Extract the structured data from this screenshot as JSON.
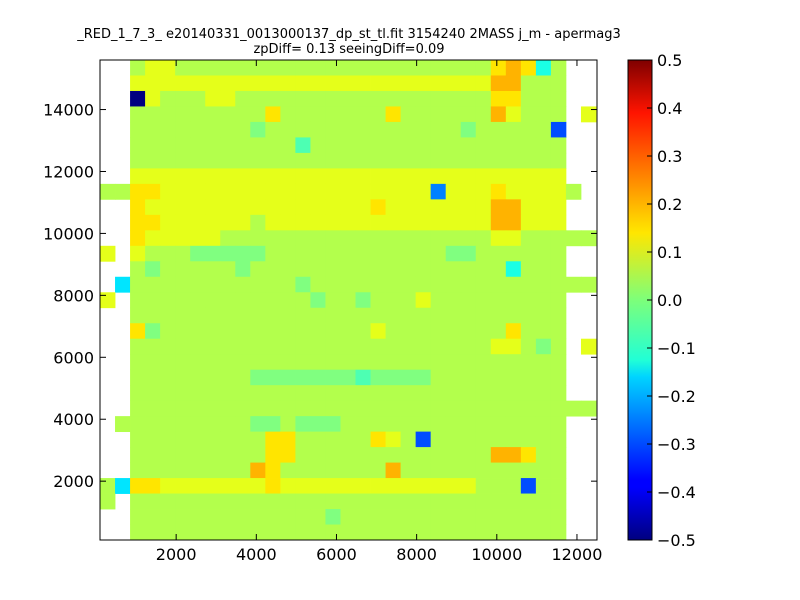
{
  "chart_data": {
    "type": "heatmap",
    "title_line1": "_RED_1_7_3_ e20140331_0013000137_dp_st_tl.fit 3154240 2MASS j_m - apermag3",
    "title_line2": "zpDiff= 0.13 seeingDiff=0.09",
    "xlim": [
      100,
      12500
    ],
    "ylim": [
      100,
      15600
    ],
    "x_ticks": [
      2000,
      4000,
      6000,
      8000,
      10000,
      12000
    ],
    "y_ticks": [
      2000,
      4000,
      6000,
      8000,
      10000,
      12000,
      14000
    ],
    "x_tick_labels": [
      "2000",
      "4000",
      "6000",
      "8000",
      "10000",
      "12000"
    ],
    "y_tick_labels": [
      "2000",
      "4000",
      "6000",
      "8000",
      "10000",
      "12000",
      "14000"
    ],
    "colorbar": {
      "colormap": "jet",
      "vmin": -0.5,
      "vmax": 0.5,
      "ticks": [
        0.5,
        0.4,
        0.3,
        0.2,
        0.1,
        0.0,
        -0.1,
        -0.2,
        -0.3,
        -0.4,
        -0.5
      ],
      "tick_labels": [
        "0.5",
        "0.4",
        "0.3",
        "0.2",
        "0.1",
        "0.0",
        "−0.1",
        "−0.2",
        "−0.3",
        "−0.4",
        "−0.5"
      ]
    },
    "grid": false,
    "cell_x_edges": [
      100,
      475,
      850,
      1225,
      1600,
      1975,
      2350,
      2725,
      3100,
      3475,
      3850,
      4225,
      4600,
      4975,
      5350,
      5725,
      6100,
      6475,
      6850,
      7225,
      7600,
      7975,
      8350,
      8725,
      9100,
      9475,
      9850,
      10225,
      10600,
      10975,
      11350,
      11725,
      12100,
      12475
    ],
    "cell_y_edges": [
      100,
      600,
      1100,
      1600,
      2100,
      2600,
      3100,
      3600,
      4100,
      4600,
      5100,
      5600,
      6100,
      6600,
      7100,
      7600,
      8100,
      8600,
      9100,
      9600,
      10100,
      10600,
      11100,
      11600,
      12100,
      12600,
      13100,
      13600,
      14100,
      14600,
      15100,
      15600
    ],
    "value_grid_rows_top_to_bottom": [
      [
        null,
        null,
        0.05,
        0.1,
        0.1,
        0.05,
        0.05,
        0.05,
        0.05,
        0.05,
        0.05,
        0.05,
        0.05,
        0.05,
        0.05,
        0.05,
        0.05,
        0.05,
        0.05,
        0.05,
        0.05,
        0.05,
        0.05,
        0.05,
        0.05,
        0.05,
        0.15,
        0.2,
        0.15,
        -0.1,
        0.05,
        null,
        null
      ],
      [
        null,
        null,
        0.1,
        0.1,
        0.1,
        0.1,
        0.1,
        0.1,
        0.1,
        0.1,
        0.1,
        0.1,
        0.1,
        0.1,
        0.1,
        0.1,
        0.1,
        0.1,
        0.1,
        0.1,
        0.1,
        0.1,
        0.1,
        0.1,
        0.1,
        0.1,
        0.2,
        0.2,
        0.05,
        0.05,
        0.05,
        null,
        null
      ],
      [
        null,
        null,
        -0.5,
        0.1,
        0.05,
        0.05,
        0.05,
        0.1,
        0.1,
        0.05,
        0.05,
        0.05,
        0.05,
        0.05,
        0.05,
        0.05,
        0.05,
        0.05,
        0.05,
        0.05,
        0.05,
        0.05,
        0.05,
        0.05,
        0.05,
        0.05,
        0.15,
        0.15,
        0.05,
        0.05,
        0.05,
        null,
        null
      ],
      [
        null,
        null,
        0.05,
        0.05,
        0.05,
        0.05,
        0.05,
        0.05,
        0.05,
        0.05,
        0.05,
        0.15,
        0.05,
        0.05,
        0.05,
        0.05,
        0.05,
        0.05,
        0.05,
        0.15,
        0.05,
        0.05,
        0.05,
        0.05,
        0.05,
        0.05,
        0.2,
        0.1,
        0.05,
        0.05,
        0.05,
        null,
        0.1
      ],
      [
        null,
        null,
        0.05,
        0.05,
        0.05,
        0.05,
        0.05,
        0.05,
        0.05,
        0.05,
        0.0,
        0.05,
        0.05,
        0.05,
        0.05,
        0.05,
        0.05,
        0.05,
        0.05,
        0.05,
        0.05,
        0.05,
        0.05,
        0.05,
        0.0,
        0.05,
        0.05,
        0.05,
        0.05,
        0.05,
        -0.3,
        null,
        null
      ],
      [
        null,
        null,
        0.05,
        0.05,
        0.05,
        0.05,
        0.05,
        0.05,
        0.05,
        0.05,
        0.05,
        0.05,
        0.05,
        -0.05,
        0.05,
        0.05,
        0.05,
        0.05,
        0.05,
        0.05,
        0.05,
        0.05,
        0.05,
        0.05,
        0.05,
        0.05,
        0.05,
        0.05,
        0.05,
        0.05,
        0.05,
        null,
        null
      ],
      [
        null,
        null,
        0.05,
        0.05,
        0.05,
        0.05,
        0.05,
        0.05,
        0.05,
        0.05,
        0.05,
        0.05,
        0.05,
        0.05,
        0.05,
        0.05,
        0.05,
        0.05,
        0.05,
        0.05,
        0.05,
        0.05,
        0.05,
        0.05,
        0.05,
        0.05,
        0.05,
        0.05,
        0.05,
        0.05,
        0.05,
        null,
        null
      ],
      [
        null,
        null,
        0.1,
        0.1,
        0.1,
        0.1,
        0.1,
        0.1,
        0.1,
        0.1,
        0.1,
        0.1,
        0.1,
        0.1,
        0.1,
        0.1,
        0.1,
        0.1,
        0.1,
        0.1,
        0.1,
        0.1,
        0.1,
        0.1,
        0.1,
        0.1,
        0.1,
        0.1,
        0.1,
        0.1,
        0.1,
        null,
        null
      ],
      [
        0.05,
        0.05,
        0.15,
        0.15,
        0.1,
        0.1,
        0.1,
        0.1,
        0.1,
        0.1,
        0.1,
        0.1,
        0.1,
        0.1,
        0.1,
        0.1,
        0.1,
        0.1,
        0.1,
        0.1,
        0.1,
        0.1,
        -0.25,
        0.1,
        0.1,
        0.1,
        0.15,
        0.1,
        0.1,
        0.1,
        0.1,
        0.05,
        null
      ],
      [
        null,
        null,
        0.15,
        0.1,
        0.1,
        0.1,
        0.1,
        0.1,
        0.1,
        0.1,
        0.1,
        0.1,
        0.1,
        0.1,
        0.1,
        0.1,
        0.1,
        0.1,
        0.15,
        0.1,
        0.1,
        0.1,
        0.1,
        0.1,
        0.1,
        0.1,
        0.2,
        0.2,
        0.1,
        0.1,
        0.1,
        null,
        null
      ],
      [
        null,
        null,
        0.15,
        0.15,
        0.1,
        0.1,
        0.1,
        0.1,
        0.1,
        0.1,
        0.05,
        0.1,
        0.1,
        0.1,
        0.1,
        0.1,
        0.1,
        0.1,
        0.1,
        0.1,
        0.1,
        0.1,
        0.1,
        0.1,
        0.1,
        0.1,
        0.2,
        0.2,
        0.1,
        0.1,
        0.1,
        null,
        null
      ],
      [
        null,
        null,
        0.15,
        0.1,
        0.1,
        0.1,
        0.1,
        0.1,
        0.05,
        0.05,
        0.05,
        0.05,
        0.05,
        0.05,
        0.05,
        0.05,
        0.05,
        0.05,
        0.05,
        0.05,
        0.05,
        0.05,
        0.05,
        0.05,
        0.05,
        0.05,
        0.1,
        0.1,
        0.05,
        0.05,
        0.05,
        0.05,
        0.05
      ],
      [
        0.1,
        null,
        0.1,
        0.05,
        0.05,
        0.05,
        0.0,
        0.0,
        0.0,
        0.0,
        0.0,
        0.05,
        0.05,
        0.05,
        0.05,
        0.05,
        0.05,
        0.05,
        0.05,
        0.05,
        0.05,
        0.05,
        0.05,
        0.0,
        0.0,
        0.05,
        0.05,
        0.05,
        0.05,
        0.05,
        0.05,
        null,
        null
      ],
      [
        null,
        null,
        0.05,
        0.0,
        0.05,
        0.05,
        0.05,
        0.05,
        0.05,
        0.0,
        0.05,
        0.05,
        0.05,
        0.05,
        0.05,
        0.05,
        0.05,
        0.05,
        0.05,
        0.05,
        0.05,
        0.05,
        0.05,
        0.05,
        0.05,
        0.05,
        0.05,
        -0.1,
        0.05,
        0.05,
        0.05,
        null,
        null
      ],
      [
        null,
        -0.15,
        0.05,
        0.05,
        0.05,
        0.05,
        0.05,
        0.05,
        0.05,
        0.05,
        0.05,
        0.05,
        0.05,
        0.0,
        0.05,
        0.05,
        0.05,
        0.05,
        0.05,
        0.05,
        0.05,
        0.05,
        0.05,
        0.05,
        0.05,
        0.05,
        0.05,
        0.05,
        0.05,
        0.05,
        0.05,
        0.05,
        0.05
      ],
      [
        0.1,
        null,
        0.05,
        0.05,
        0.05,
        0.05,
        0.05,
        0.05,
        0.05,
        0.05,
        0.05,
        0.05,
        0.05,
        0.05,
        0.0,
        0.05,
        0.05,
        0.0,
        0.05,
        0.05,
        0.05,
        0.1,
        0.05,
        0.05,
        0.05,
        0.05,
        0.05,
        0.05,
        0.05,
        0.05,
        0.05,
        null,
        null
      ],
      [
        null,
        null,
        0.05,
        0.05,
        0.05,
        0.05,
        0.05,
        0.05,
        0.05,
        0.05,
        0.05,
        0.05,
        0.05,
        0.05,
        0.05,
        0.05,
        0.05,
        0.05,
        0.05,
        0.05,
        0.05,
        0.05,
        0.05,
        0.05,
        0.05,
        0.05,
        0.05,
        0.05,
        0.05,
        0.05,
        0.05,
        null,
        null
      ],
      [
        null,
        null,
        0.15,
        0.0,
        0.05,
        0.05,
        0.05,
        0.05,
        0.05,
        0.05,
        0.05,
        0.05,
        0.05,
        0.05,
        0.05,
        0.05,
        0.05,
        0.05,
        0.1,
        0.05,
        0.05,
        0.05,
        0.05,
        0.05,
        0.05,
        0.05,
        0.05,
        0.15,
        0.05,
        0.05,
        0.05,
        null,
        null
      ],
      [
        null,
        null,
        0.05,
        0.05,
        0.05,
        0.05,
        0.05,
        0.05,
        0.05,
        0.05,
        0.05,
        0.05,
        0.05,
        0.05,
        0.05,
        0.05,
        0.05,
        0.05,
        0.05,
        0.05,
        0.05,
        0.05,
        0.05,
        0.05,
        0.05,
        0.05,
        0.1,
        0.1,
        0.05,
        0.0,
        0.05,
        null,
        0.1
      ],
      [
        null,
        null,
        0.05,
        0.05,
        0.05,
        0.05,
        0.05,
        0.05,
        0.05,
        0.05,
        0.05,
        0.05,
        0.05,
        0.05,
        0.05,
        0.05,
        0.05,
        0.05,
        0.05,
        0.05,
        0.05,
        0.05,
        0.05,
        0.05,
        0.05,
        0.05,
        0.05,
        0.05,
        0.05,
        0.05,
        0.05,
        null,
        null
      ],
      [
        null,
        null,
        0.05,
        0.05,
        0.05,
        0.05,
        0.05,
        0.05,
        0.05,
        0.05,
        0.0,
        0.0,
        0.0,
        0.0,
        0.0,
        0.0,
        0.0,
        -0.05,
        0.0,
        0.0,
        0.0,
        0.0,
        0.05,
        0.05,
        0.05,
        0.05,
        0.05,
        0.05,
        0.05,
        0.05,
        0.05,
        null,
        null
      ],
      [
        null,
        null,
        0.05,
        0.05,
        0.05,
        0.05,
        0.05,
        0.05,
        0.05,
        0.05,
        0.05,
        0.05,
        0.05,
        0.05,
        0.05,
        0.05,
        0.05,
        0.05,
        0.05,
        0.05,
        0.05,
        0.05,
        0.05,
        0.05,
        0.05,
        0.05,
        0.05,
        0.05,
        0.05,
        0.05,
        0.05,
        null,
        null
      ],
      [
        null,
        null,
        0.05,
        0.05,
        0.05,
        0.05,
        0.05,
        0.05,
        0.05,
        0.05,
        0.05,
        0.05,
        0.05,
        0.05,
        0.05,
        0.05,
        0.05,
        0.05,
        0.05,
        0.05,
        0.05,
        0.05,
        0.05,
        0.05,
        0.05,
        0.05,
        0.05,
        0.05,
        0.05,
        0.05,
        0.05,
        0.05,
        0.05
      ],
      [
        null,
        0.05,
        0.05,
        0.05,
        0.05,
        0.05,
        0.05,
        0.05,
        0.05,
        0.05,
        0.0,
        0.0,
        0.05,
        0.0,
        0.0,
        0.0,
        0.05,
        0.05,
        0.05,
        0.05,
        0.05,
        0.05,
        0.05,
        0.05,
        0.05,
        0.05,
        0.05,
        0.05,
        0.05,
        0.05,
        0.05,
        null,
        null
      ],
      [
        null,
        null,
        0.05,
        0.05,
        0.05,
        0.05,
        0.05,
        0.05,
        0.05,
        0.05,
        0.05,
        0.15,
        0.15,
        0.05,
        0.05,
        0.05,
        0.05,
        0.05,
        0.15,
        0.1,
        0.05,
        -0.3,
        0.05,
        0.05,
        0.05,
        0.05,
        0.05,
        0.05,
        0.05,
        0.05,
        0.05,
        null,
        null
      ],
      [
        null,
        null,
        0.05,
        0.05,
        0.05,
        0.05,
        0.05,
        0.05,
        0.05,
        0.05,
        0.05,
        0.15,
        0.15,
        0.05,
        0.05,
        0.05,
        0.05,
        0.05,
        0.05,
        0.05,
        0.05,
        0.05,
        0.05,
        0.05,
        0.05,
        0.05,
        0.2,
        0.2,
        0.15,
        0.05,
        0.05,
        null,
        null
      ],
      [
        null,
        null,
        0.05,
        0.05,
        0.05,
        0.05,
        0.05,
        0.05,
        0.05,
        0.05,
        0.2,
        0.15,
        0.05,
        0.05,
        0.05,
        0.05,
        0.05,
        0.05,
        0.05,
        0.2,
        0.05,
        0.05,
        0.05,
        0.05,
        0.05,
        0.05,
        0.05,
        0.05,
        0.05,
        0.05,
        0.05,
        null,
        null
      ],
      [
        0.05,
        -0.15,
        0.15,
        0.15,
        0.1,
        0.1,
        0.1,
        0.1,
        0.1,
        0.1,
        0.1,
        0.15,
        0.1,
        0.1,
        0.1,
        0.1,
        0.1,
        0.1,
        0.1,
        0.1,
        0.1,
        0.1,
        0.1,
        0.1,
        0.1,
        0.05,
        0.05,
        0.05,
        -0.3,
        0.05,
        0.05,
        null,
        null
      ],
      [
        0.05,
        null,
        0.05,
        0.05,
        0.05,
        0.05,
        0.05,
        0.05,
        0.05,
        0.05,
        0.05,
        0.05,
        0.05,
        0.05,
        0.05,
        0.05,
        0.05,
        0.05,
        0.05,
        0.05,
        0.05,
        0.05,
        0.05,
        0.05,
        0.05,
        0.05,
        0.05,
        0.05,
        0.05,
        0.05,
        0.05,
        null,
        null
      ],
      [
        null,
        null,
        0.05,
        0.05,
        0.05,
        0.05,
        0.05,
        0.05,
        0.05,
        0.05,
        0.05,
        0.05,
        0.05,
        0.05,
        0.05,
        0.0,
        0.05,
        0.05,
        0.05,
        0.05,
        0.05,
        0.05,
        0.05,
        0.05,
        0.05,
        0.05,
        0.05,
        0.05,
        0.05,
        0.05,
        0.05,
        null,
        null
      ],
      [
        null,
        null,
        0.05,
        0.05,
        0.05,
        0.05,
        0.05,
        0.05,
        0.05,
        0.05,
        0.05,
        0.05,
        0.05,
        0.05,
        0.05,
        0.05,
        0.05,
        0.05,
        0.05,
        0.05,
        0.05,
        0.05,
        0.05,
        0.05,
        0.05,
        0.05,
        0.05,
        0.05,
        0.05,
        0.05,
        0.05,
        null,
        null
      ]
    ]
  }
}
